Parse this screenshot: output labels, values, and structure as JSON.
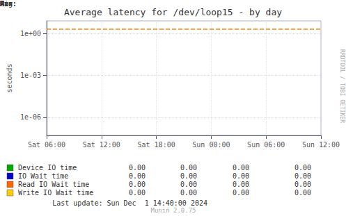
{
  "chart_data": {
    "type": "line",
    "title": "Average latency for /dev/loop15 - by day",
    "y_label": "seconds",
    "log": "y",
    "grid": true,
    "legend": "bottom",
    "xlim": [
      0,
      30
    ],
    "xticks": [
      {
        "value": 0,
        "label": "Sat 06:00"
      },
      {
        "value": 6,
        "label": "Sat 12:00"
      },
      {
        "value": 12,
        "label": "Sat 18:00"
      },
      {
        "value": 18,
        "label": "Sun 00:00"
      },
      {
        "value": 24,
        "label": "Sun 06:00"
      },
      {
        "value": 30,
        "label": "Sun 12:00"
      }
    ],
    "ylim": [
      5e-08,
      8.0
    ],
    "yticks": [
      {
        "value": 1e-06,
        "label": "1e-06"
      },
      {
        "value": 0.001,
        "label": "1e-03"
      },
      {
        "value": 1,
        "label": "1e+00"
      }
    ],
    "reference_line": {
      "value": 2.2,
      "color": "#ff8800",
      "line_style": "dashed"
    },
    "series": [
      {
        "name": "Device IO time",
        "color": "#00aa00",
        "values": []
      },
      {
        "name": "IO Wait time",
        "color": "#0000cc",
        "values": []
      },
      {
        "name": "Read IO Wait time",
        "color": "#ff6600",
        "values": []
      },
      {
        "name": "Write IO Wait time",
        "color": "#ffcc00",
        "values": []
      }
    ],
    "table": {
      "headers": [
        "Cur:",
        "Min:",
        "Avg:",
        "Max:"
      ],
      "rows": [
        [
          "0.00",
          "0.00",
          "0.00",
          "0.00"
        ],
        [
          "0.00",
          "0.00",
          "0.00",
          "0.00"
        ],
        [
          "0.00",
          "0.00",
          "0.00",
          "0.00"
        ],
        [
          "0.00",
          "0.00",
          "0.00",
          "0.00"
        ]
      ]
    },
    "annotations": [
      "RRDTOOL / TOBI OETIKER",
      "Last update: Sun Dec  1 14:40:00 2024",
      "Munin 2.0.75"
    ]
  }
}
